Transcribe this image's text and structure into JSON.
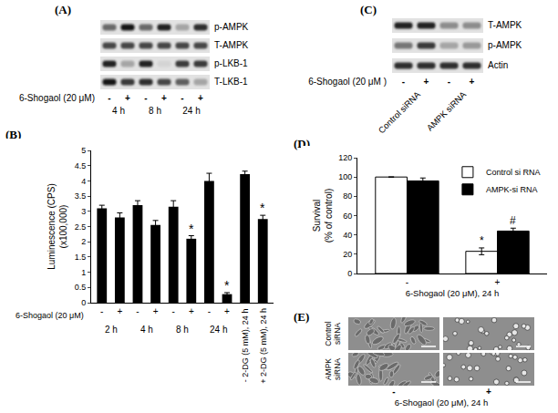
{
  "chart_data": [
    {
      "panel": "(B)",
      "type": "bar",
      "y_label": [
        "Luminescence (CPS)",
        "(x100,000)"
      ],
      "row_label": "6-Shogaol (20 μM)",
      "categories": [
        "-",
        "+",
        "-",
        "+",
        "-",
        "+",
        "-",
        "+",
        "- 2-DG (5 mM), 24 h",
        "+ 2-DG (5 mM), 24 h"
      ],
      "groups": [
        {
          "label": "2 h",
          "from": 0,
          "to": 1
        },
        {
          "label": "4 h",
          "from": 2,
          "to": 3
        },
        {
          "label": "8 h",
          "from": 4,
          "to": 5
        },
        {
          "label": "24 h",
          "from": 6,
          "to": 7
        }
      ],
      "values": [
        3.1,
        2.8,
        3.2,
        2.55,
        3.15,
        2.1,
        4.0,
        0.28,
        4.22,
        2.75
      ],
      "errors": [
        0.1,
        0.15,
        0.15,
        0.15,
        0.2,
        0.1,
        0.25,
        0.05,
        0.1,
        0.12
      ],
      "color": "#000000",
      "ylim": [
        0,
        5
      ],
      "yticks": [
        0,
        0.5,
        1,
        1.5,
        2,
        2.5,
        3,
        3.5,
        4,
        4.5,
        5
      ],
      "grid": false,
      "annotations": [
        {
          "index": 5,
          "text": "*"
        },
        {
          "index": 7,
          "text": "*"
        },
        {
          "index": 9,
          "text": "*"
        }
      ]
    },
    {
      "panel": "(D)",
      "type": "bar",
      "y_label": [
        "Survival",
        "(% of control)"
      ],
      "x_label": "6-Shogaol (20 μM), 24 h",
      "categories": [
        "-",
        "+"
      ],
      "series": [
        {
          "name": "Control si RNA",
          "color": "#ffffff",
          "values": [
            100,
            23
          ],
          "errors": [
            0,
            3.5
          ]
        },
        {
          "name": "AMPK-si RNA",
          "color": "#000000",
          "values": [
            96,
            44
          ],
          "errors": [
            3,
            3
          ]
        }
      ],
      "ylim": [
        0,
        120
      ],
      "yticks": [
        0,
        20,
        40,
        60,
        80,
        100,
        120
      ],
      "grid": false,
      "legend": "top-right",
      "annotations": [
        {
          "series": 0,
          "index": 1,
          "text": "*"
        },
        {
          "series": 1,
          "index": 1,
          "text": "#"
        }
      ]
    }
  ],
  "blots": [
    {
      "panel": "(A)",
      "rows": [
        {
          "label": "p-AMPK",
          "intensity": [
            0.55,
            0.9,
            0.55,
            0.85,
            0.3,
            0.8
          ]
        },
        {
          "label": "T-AMPK",
          "intensity": [
            0.7,
            0.7,
            0.7,
            0.7,
            0.7,
            0.7
          ]
        },
        {
          "label": "p-LKB-1",
          "intensity": [
            0.85,
            0.3,
            0.85,
            0.1,
            0.75,
            0.75
          ]
        },
        {
          "label": "T-LKB-1",
          "intensity": [
            0.9,
            0.75,
            0.8,
            0.7,
            0.6,
            0.3
          ]
        }
      ],
      "treatment": "6-Shogaol (20 μM)",
      "signs": [
        "-",
        "+",
        "-",
        "+",
        "-",
        "+"
      ],
      "groups": [
        {
          "label": "4 h",
          "from": 0,
          "to": 1
        },
        {
          "label": "8 h",
          "from": 2,
          "to": 3
        },
        {
          "label": "24 h",
          "from": 4,
          "to": 5
        }
      ]
    },
    {
      "panel": "(C)",
      "rows": [
        {
          "label": "T-AMPK",
          "intensity": [
            0.85,
            0.85,
            0.4,
            0.4
          ]
        },
        {
          "label": "p-AMPK",
          "intensity": [
            0.5,
            0.75,
            0.3,
            0.35
          ]
        },
        {
          "label": "Actin",
          "intensity": [
            0.8,
            0.8,
            0.8,
            0.8
          ]
        }
      ],
      "treatment": "6-Shogaol (20 μM )",
      "signs": [
        "-",
        "+",
        "-",
        "+"
      ],
      "groups": [
        {
          "label": "Control siRNA",
          "from": 0,
          "to": 1
        },
        {
          "label": "AMPK siRNA",
          "from": 2,
          "to": 3
        }
      ]
    }
  ],
  "images": {
    "panel": "(E)",
    "rows": [
      "Control siRNA",
      "AMPK siRNA"
    ],
    "columns": [
      "-",
      "+"
    ],
    "caption": "6-Shogaol (20 μM), 24 h"
  }
}
